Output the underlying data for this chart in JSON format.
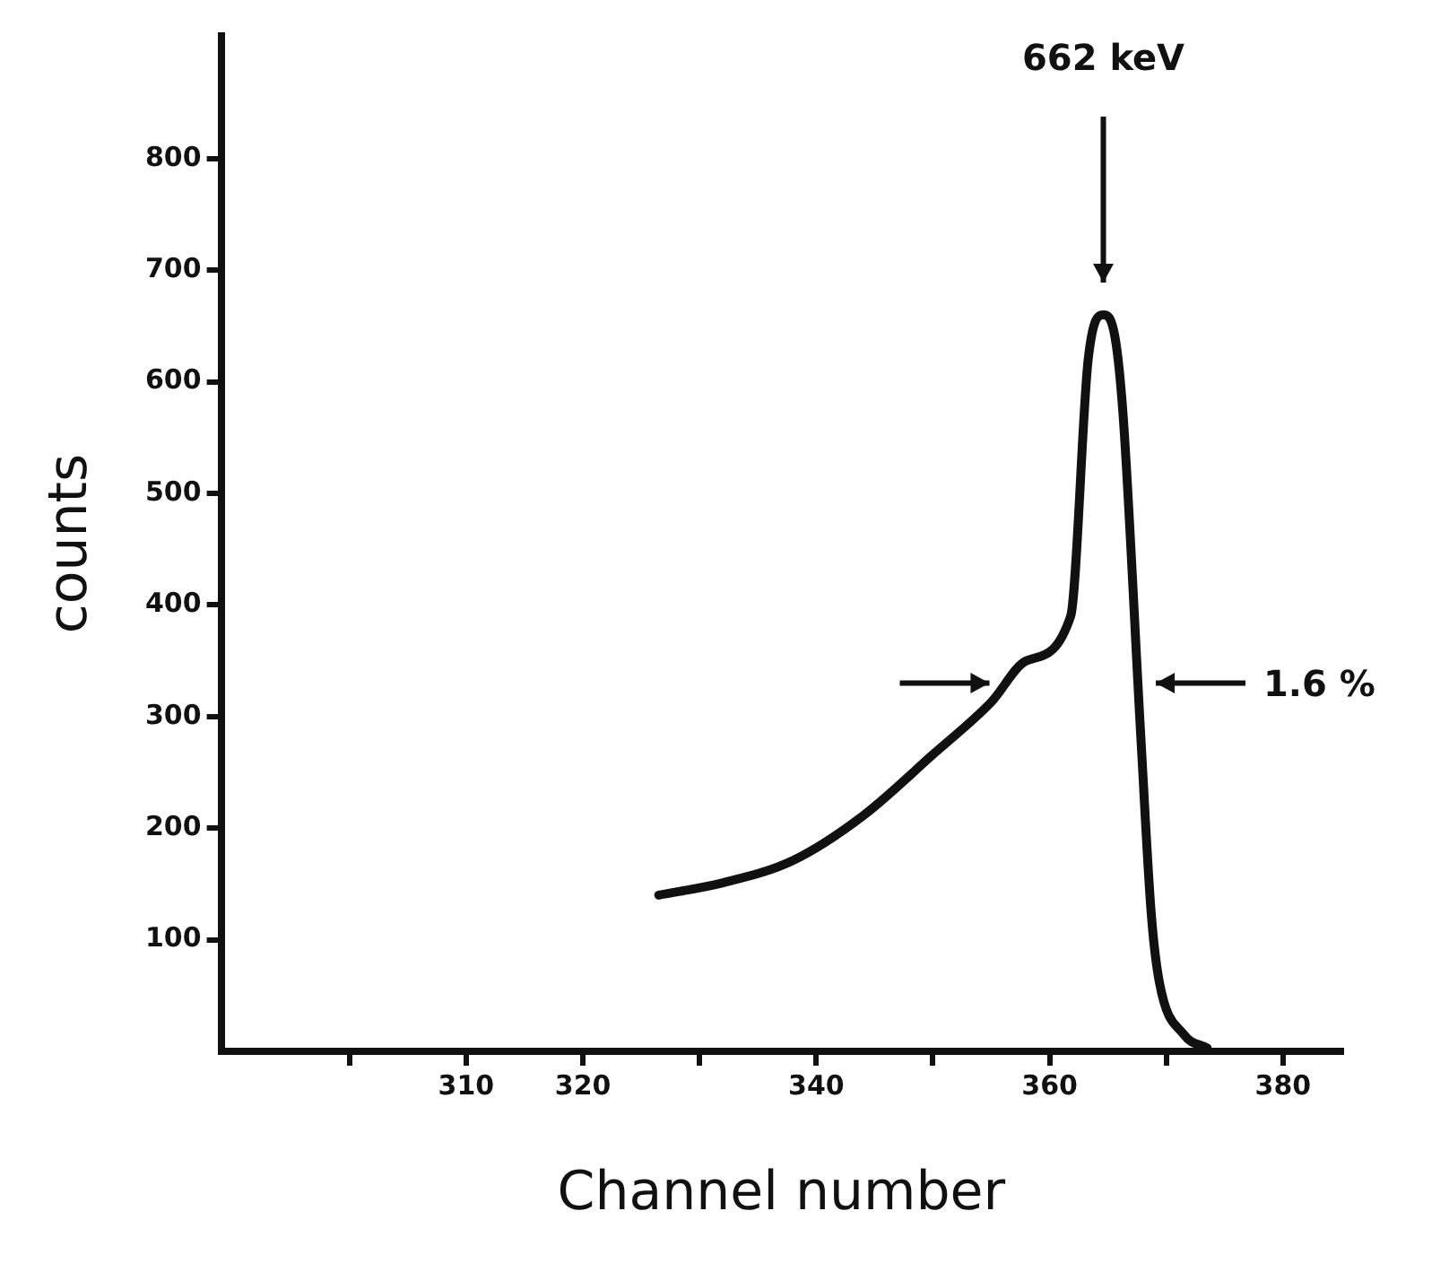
{
  "chart_data": {
    "type": "line",
    "xlabel": "Channel number",
    "ylabel": "counts",
    "series": [
      {
        "color": "#111111",
        "x": [
          326.5,
          332,
          338,
          344,
          350,
          355,
          358,
          361.8,
          363.3,
          364.6,
          365.6,
          366.3,
          367.8,
          368.7,
          369.4,
          371.5,
          373.5
        ],
        "values": [
          140,
          151,
          171,
          211,
          266,
          313,
          350,
          390,
          620,
          660,
          640,
          569,
          284,
          124,
          62,
          15,
          3
        ]
      }
    ],
    "xlim": [
      289,
      385
    ],
    "ylim": [
      0,
      910
    ],
    "xticks": [
      {
        "value": 300,
        "label": null
      },
      310,
      320,
      {
        "value": 330,
        "label": null
      },
      340,
      {
        "value": 350,
        "label": null
      },
      360,
      {
        "value": 370,
        "label": null
      },
      380
    ],
    "yticks": [
      100,
      200,
      300,
      400,
      500,
      600,
      700,
      800
    ],
    "annotations": [
      "662 keV",
      "1.6 %"
    ],
    "grid": false,
    "legend": false,
    "marker": "none",
    "line_style": "solid"
  }
}
